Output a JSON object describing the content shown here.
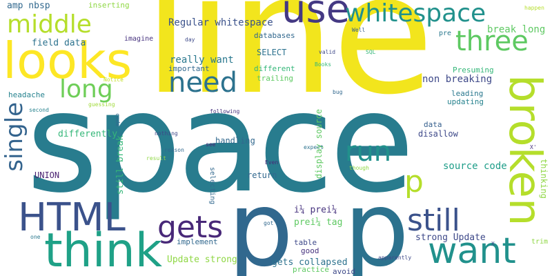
{
  "wordcloud": {
    "palette": {
      "yellow": "#f2e51d",
      "lime": "#8fd744",
      "green": "#35b779",
      "teal": "#21918c",
      "blue": "#31688e",
      "indigo": "#443983",
      "purple": "#440154"
    },
    "words": [
      {
        "text": "line",
        "color": "#f2e51d"
      },
      {
        "text": "space",
        "color": "#287c8e"
      },
      {
        "text": "p",
        "color": "#31688e"
      },
      {
        "text": "p",
        "color": "#2c728e"
      },
      {
        "text": "broken",
        "color": "#b5de2b"
      },
      {
        "text": "looks",
        "color": "#fde725"
      },
      {
        "text": "think",
        "color": "#1fa187"
      },
      {
        "text": "want",
        "color": "#21918c"
      },
      {
        "text": "HTML",
        "color": "#3b528b"
      },
      {
        "text": "use",
        "color": "#443983"
      },
      {
        "text": "whitespace",
        "color": "#21918c"
      },
      {
        "text": "need",
        "color": "#2c728e"
      },
      {
        "text": "gets",
        "color": "#482878"
      },
      {
        "text": "still",
        "color": "#3b528b"
      },
      {
        "text": "middle",
        "color": "#b5de2b"
      },
      {
        "text": "three",
        "color": "#5ec962"
      },
      {
        "text": "run",
        "color": "#21918c"
      },
      {
        "text": "single",
        "color": "#33638d"
      },
      {
        "text": "long",
        "color": "#6ece58"
      },
      {
        "text": "p",
        "color": "#b5de2b"
      },
      {
        "text": "source code",
        "color": "#1f9e89"
      },
      {
        "text": "thinking",
        "color": "#8fd744"
      },
      {
        "text": "Regular whitespace",
        "color": "#3b528b"
      },
      {
        "text": "break long",
        "color": "#5ec962"
      },
      {
        "text": "field data",
        "color": "#2c728e"
      },
      {
        "text": "really want",
        "color": "#2a788e"
      },
      {
        "text": "non breaking",
        "color": "#3e4989"
      },
      {
        "text": "amp nbsp",
        "color": "#31688e"
      },
      {
        "text": "inserting",
        "color": "#8fd744"
      },
      {
        "text": "databases",
        "color": "#31688e"
      },
      {
        "text": "SELECT",
        "color": "#2c728e"
      },
      {
        "text": "headache",
        "color": "#26828e"
      },
      {
        "text": "differently",
        "color": "#35b779"
      },
      {
        "text": "handling",
        "color": "#31688e"
      },
      {
        "text": "UNION",
        "color": "#481f70"
      },
      {
        "text": "still break",
        "color": "#35b779"
      },
      {
        "text": "display source",
        "color": "#5ec962"
      },
      {
        "text": "return",
        "color": "#31688e"
      },
      {
        "text": "i¼ prei¼",
        "color": "#46327e"
      },
      {
        "text": "prei¼ tag",
        "color": "#5ec962"
      },
      {
        "text": "strong Update",
        "color": "#3e4989"
      },
      {
        "text": "Update strong",
        "color": "#8fd744"
      },
      {
        "text": "gets collapsed",
        "color": "#2c728e"
      },
      {
        "text": "Presuming",
        "color": "#35b779"
      },
      {
        "text": "leading",
        "color": "#2a788e"
      },
      {
        "text": "updating",
        "color": "#26828e"
      },
      {
        "text": "disallow",
        "color": "#3e4989"
      },
      {
        "text": "data",
        "color": "#355f8d"
      },
      {
        "text": "different",
        "color": "#35b779"
      },
      {
        "text": "trailing",
        "color": "#5ec962"
      },
      {
        "text": "important",
        "color": "#31688e"
      },
      {
        "text": "imagine",
        "color": "#46327e"
      },
      {
        "text": "implement",
        "color": "#31688e"
      },
      {
        "text": "selecting",
        "color": "#31688e"
      },
      {
        "text": "table",
        "color": "#3e4989"
      },
      {
        "text": "good",
        "color": "#46327e"
      },
      {
        "text": "practice",
        "color": "#5ec962"
      },
      {
        "text": "avoid",
        "color": "#3e4989"
      },
      {
        "text": "pre",
        "color": "#2a788e"
      },
      {
        "text": "trim",
        "color": "#8fd744"
      },
      {
        "text": "happen",
        "color": "#b5de2b"
      },
      {
        "text": "Well",
        "color": "#355f8d"
      },
      {
        "text": "valid",
        "color": "#3e4989"
      },
      {
        "text": "SQL",
        "color": "#35b779"
      },
      {
        "text": "Books",
        "color": "#35b779"
      },
      {
        "text": "bug",
        "color": "#31688e"
      },
      {
        "text": "Notice",
        "color": "#c2df23"
      },
      {
        "text": "guessing",
        "color": "#a0da39"
      },
      {
        "text": "second",
        "color": "#26828e"
      },
      {
        "text": "following",
        "color": "#46327e"
      },
      {
        "text": "code",
        "color": "#31688e"
      },
      {
        "text": "nothing",
        "color": "#3e4989"
      },
      {
        "text": "see",
        "color": "#482878"
      },
      {
        "text": "reason",
        "color": "#31688e"
      },
      {
        "text": "result",
        "color": "#8fd744"
      },
      {
        "text": "day",
        "color": "#3e4989"
      },
      {
        "text": "expect",
        "color": "#2c728e"
      },
      {
        "text": "Even",
        "color": "#482878"
      },
      {
        "text": "though",
        "color": "#8fd744"
      },
      {
        "text": "X'",
        "color": "#46327e"
      },
      {
        "text": "got",
        "color": "#31688e"
      },
      {
        "text": "one",
        "color": "#2a788e"
      },
      {
        "text": "X",
        "color": "#3e4989"
      },
      {
        "text": "apparently",
        "color": "#3e4989"
      }
    ]
  }
}
